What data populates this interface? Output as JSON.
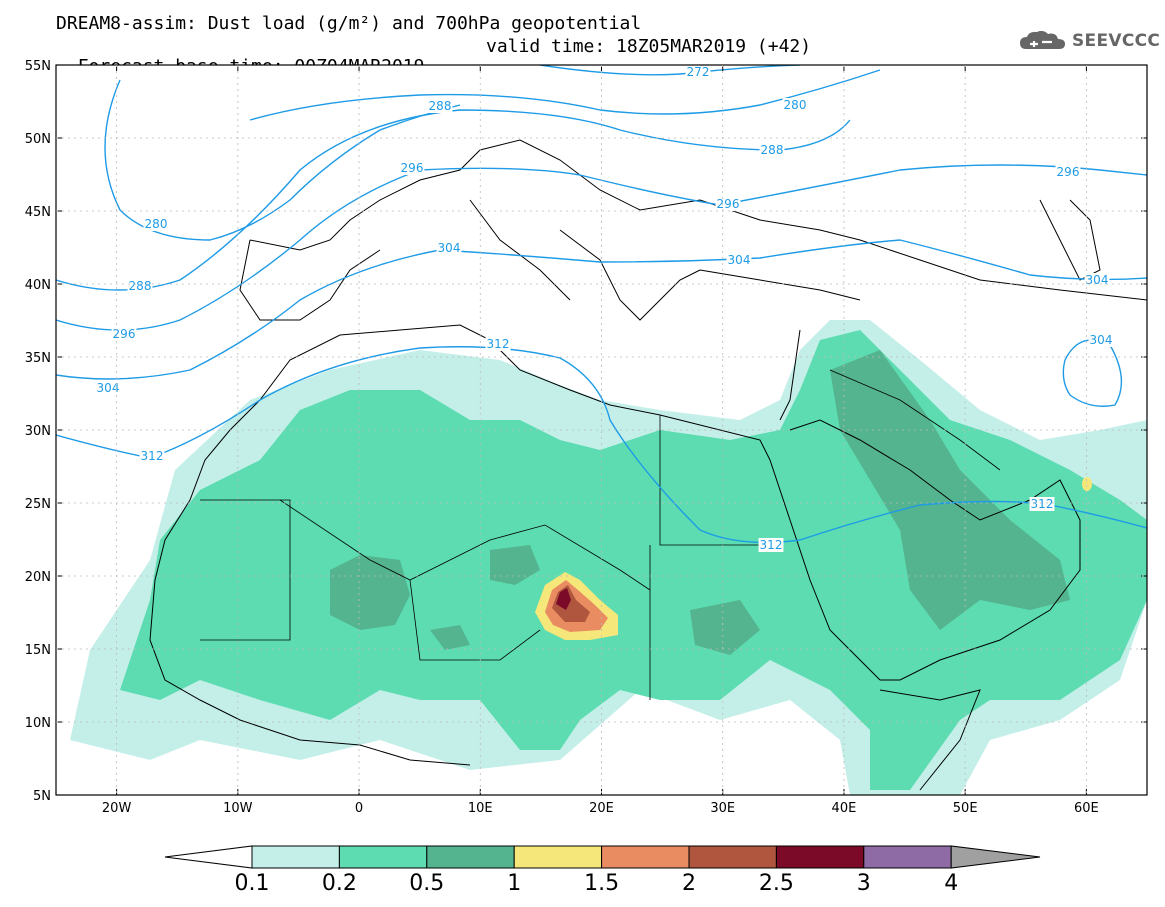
{
  "header": {
    "line1": "DREAM8-assim: Dust load (g/m²) and 700hPa geopotential",
    "line2_left": "Forecast base time: 00Z04MAR2019",
    "line2_right": "valid time: 18Z05MAR2019 (+42)"
  },
  "logo": {
    "text": "SEEVCCC",
    "icon": "cloud-icon"
  },
  "map": {
    "lon_range": [
      -25,
      65
    ],
    "lat_range": [
      5,
      55
    ],
    "lat_ticks": [
      "55N",
      "50N",
      "45N",
      "40N",
      "35N",
      "30N",
      "25N",
      "20N",
      "15N",
      "10N",
      "5N"
    ],
    "lon_ticks": [
      "20W",
      "10W",
      "0",
      "10E",
      "20E",
      "30E",
      "40E",
      "50E",
      "60E"
    ],
    "contour_color": "#1e9be6",
    "contour_labels": [
      "272",
      "280",
      "288",
      "296",
      "304",
      "312"
    ],
    "dust_colors": {
      "c01": "#c4efe9",
      "c02": "#5cdcb0",
      "c05": "#54b48f",
      "c1": "#f5e77a",
      "c15": "#e98c62",
      "c2": "#b0563e",
      "c25": "#7a0a28"
    }
  },
  "colorbar": {
    "labels": [
      "0.1",
      "0.2",
      "0.5",
      "1",
      "1.5",
      "2",
      "2.5",
      "3",
      "4"
    ],
    "colors": [
      "#c4efe9",
      "#5cdcb0",
      "#54b48f",
      "#f5e77a",
      "#e98c62",
      "#b0563e",
      "#7a0a28",
      "#8e6ba5"
    ],
    "under_color": "#ffffff",
    "over_color": "#a0a0a0"
  }
}
